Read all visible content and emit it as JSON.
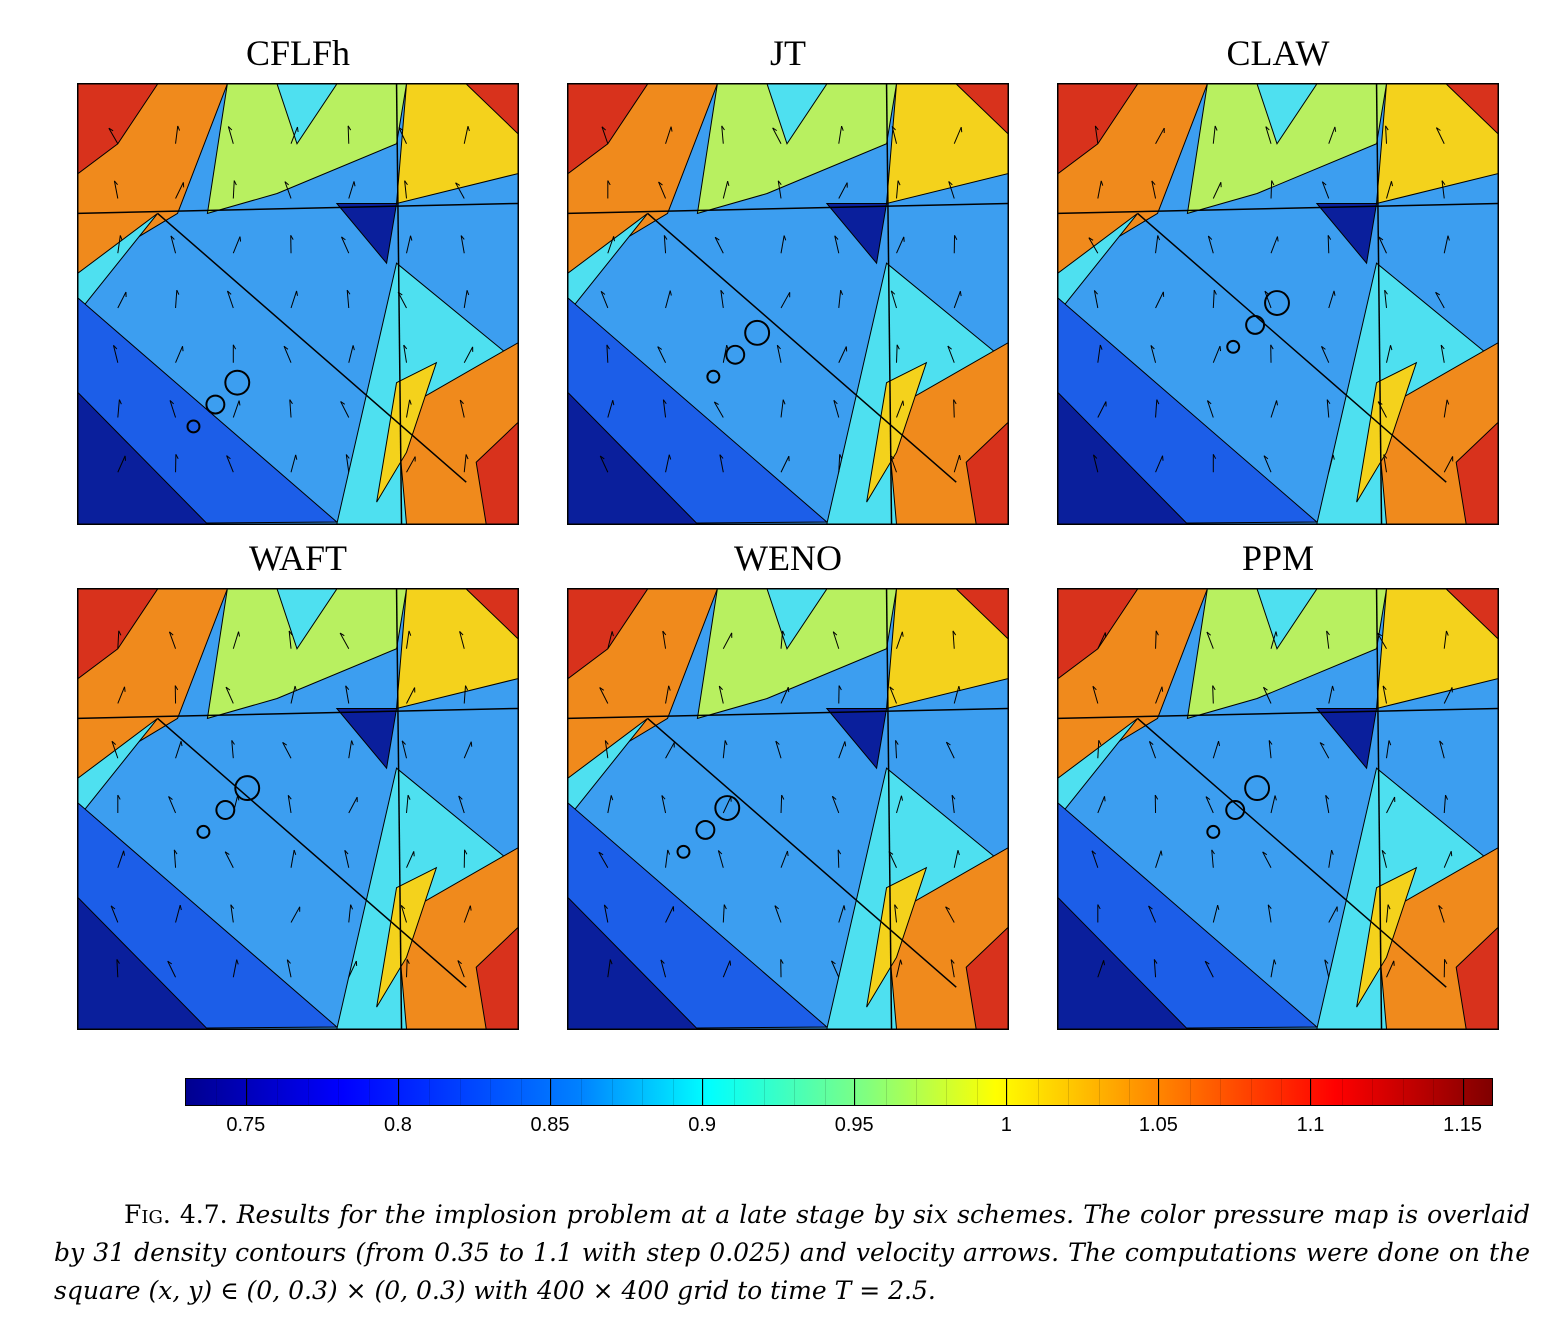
{
  "panels": [
    {
      "title": "CFLFh"
    },
    {
      "title": "JT"
    },
    {
      "title": "CLAW"
    },
    {
      "title": "WAFT"
    },
    {
      "title": "WENO"
    },
    {
      "title": "PPM"
    }
  ],
  "colorbar": {
    "min": 0.73,
    "max": 1.16,
    "ticks": [
      "0.75",
      "0.8",
      "0.85",
      "0.9",
      "0.95",
      "1",
      "1.05",
      "1.1",
      "1.15"
    ],
    "tick_values": [
      0.75,
      0.8,
      0.85,
      0.9,
      0.95,
      1.0,
      1.05,
      1.1,
      1.15
    ],
    "colormap": "jet"
  },
  "caption": {
    "label": "Fig. 4.7.",
    "text": "Results for the implosion problem at a late stage by six schemes. The color pressure map is overlaid by 31 density contours (from 0.35 to 1.1 with step 0.025) and velocity arrows. The computations were done on the square (x, y) ∈ (0, 0.3) × (0, 0.3) with 400 × 400 grid to time T = 2.5."
  },
  "colors": {
    "dark_blue": "#0a1f9c",
    "blue": "#1c5ee8",
    "light_blue": "#3c9ef0",
    "cyan": "#4ee0f0",
    "green_yellow": "#b8f060",
    "yellow": "#f4d21c",
    "orange": "#f08a1c",
    "red": "#d8321c"
  }
}
